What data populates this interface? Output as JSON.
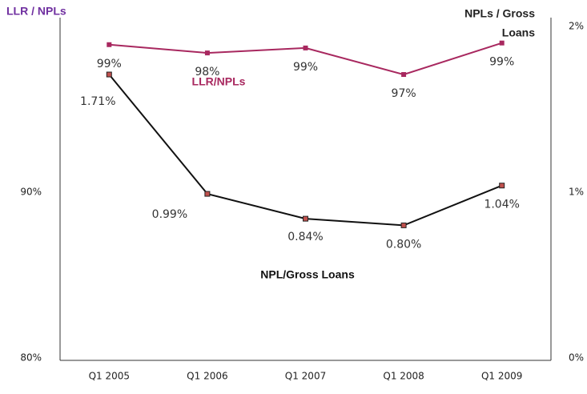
{
  "chart_data": {
    "type": "line",
    "categories": [
      "Q1 2005",
      "Q1 2006",
      "Q1 2007",
      "Q1 2008",
      "Q1 2009"
    ],
    "series": [
      {
        "name": "LLR/NPLs",
        "color": "#a8285f",
        "values": [
          98.9,
          98.4,
          98.7,
          97.1,
          99.0
        ],
        "value_labels": [
          "99%",
          "98%",
          "99%",
          "97%",
          "99%"
        ]
      },
      {
        "name": "NPL/Gross Loans",
        "color": "#111111",
        "axis": "y2",
        "values": [
          1.71,
          0.99,
          0.84,
          0.8,
          1.04
        ],
        "value_labels": [
          "1.71%",
          "0.99%",
          "0.84%",
          "0.80%",
          "1.04%"
        ]
      }
    ],
    "ylabel": "LLR / NPLs",
    "y2label": [
      "NPLs / Gross",
      "Loans"
    ],
    "ylim": [
      80,
      100
    ],
    "yticks": [
      {
        "value": 80,
        "label": "80%"
      },
      {
        "value": 90,
        "label": "90%"
      }
    ],
    "y2lim": [
      0,
      2
    ],
    "y2ticks": [
      {
        "value": 0,
        "label": "0%"
      },
      {
        "value": 1,
        "label": "1%"
      },
      {
        "value": 2,
        "label": "2%"
      }
    ]
  }
}
